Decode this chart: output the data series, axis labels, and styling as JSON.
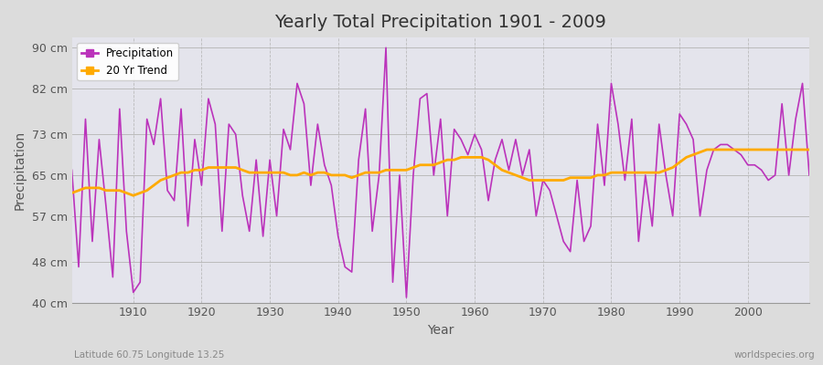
{
  "title": "Yearly Total Precipitation 1901 - 2009",
  "xlabel": "Year",
  "ylabel": "Precipitation",
  "subtitle": "Latitude 60.75 Longitude 13.25",
  "watermark": "worldspecies.org",
  "bg_color": "#dcdcdc",
  "plot_bg_color": "#e4e4ec",
  "precip_color": "#bb33bb",
  "trend_color": "#ffaa00",
  "ylim": [
    40,
    92
  ],
  "yticks": [
    40,
    48,
    57,
    65,
    73,
    82,
    90
  ],
  "ytick_labels": [
    "40 cm",
    "48 cm",
    "57 cm",
    "65 cm",
    "73 cm",
    "82 cm",
    "90 cm"
  ],
  "xticks": [
    1910,
    1920,
    1930,
    1940,
    1950,
    1960,
    1970,
    1980,
    1990,
    2000
  ],
  "years": [
    1901,
    1902,
    1903,
    1904,
    1905,
    1906,
    1907,
    1908,
    1909,
    1910,
    1911,
    1912,
    1913,
    1914,
    1915,
    1916,
    1917,
    1918,
    1919,
    1920,
    1921,
    1922,
    1923,
    1924,
    1925,
    1926,
    1927,
    1928,
    1929,
    1930,
    1931,
    1932,
    1933,
    1934,
    1935,
    1936,
    1937,
    1938,
    1939,
    1940,
    1941,
    1942,
    1943,
    1944,
    1945,
    1946,
    1947,
    1948,
    1949,
    1950,
    1951,
    1952,
    1953,
    1954,
    1955,
    1956,
    1957,
    1958,
    1959,
    1960,
    1961,
    1962,
    1963,
    1964,
    1965,
    1966,
    1967,
    1968,
    1969,
    1970,
    1971,
    1972,
    1973,
    1974,
    1975,
    1976,
    1977,
    1978,
    1979,
    1980,
    1981,
    1982,
    1983,
    1984,
    1985,
    1986,
    1987,
    1988,
    1989,
    1990,
    1991,
    1992,
    1993,
    1994,
    1995,
    1996,
    1997,
    1998,
    1999,
    2000,
    2001,
    2002,
    2003,
    2004,
    2005,
    2006,
    2007,
    2008,
    2009
  ],
  "precip": [
    66,
    47,
    76,
    52,
    72,
    59,
    45,
    78,
    54,
    42,
    44,
    76,
    71,
    80,
    62,
    60,
    78,
    55,
    72,
    63,
    80,
    75,
    54,
    75,
    73,
    61,
    54,
    68,
    53,
    68,
    57,
    74,
    70,
    83,
    79,
    63,
    75,
    67,
    63,
    53,
    47,
    46,
    68,
    78,
    54,
    65,
    90,
    44,
    65,
    41,
    65,
    80,
    81,
    65,
    76,
    57,
    74,
    72,
    69,
    73,
    70,
    60,
    68,
    72,
    66,
    72,
    65,
    70,
    57,
    64,
    62,
    57,
    52,
    50,
    64,
    52,
    55,
    75,
    63,
    83,
    75,
    64,
    76,
    52,
    65,
    55,
    75,
    65,
    57,
    77,
    75,
    72,
    57,
    66,
    70,
    71,
    71,
    70,
    69,
    67,
    67,
    66,
    64,
    65,
    79,
    65,
    76,
    83,
    65
  ],
  "trend": [
    61.5,
    62.0,
    62.5,
    62.5,
    62.5,
    62.0,
    62.0,
    62.0,
    61.5,
    61.0,
    61.5,
    62.0,
    63.0,
    64.0,
    64.5,
    65.0,
    65.5,
    65.5,
    66.0,
    66.0,
    66.5,
    66.5,
    66.5,
    66.5,
    66.5,
    66.0,
    65.5,
    65.5,
    65.5,
    65.5,
    65.5,
    65.5,
    65.0,
    65.0,
    65.5,
    65.0,
    65.5,
    65.5,
    65.0,
    65.0,
    65.0,
    64.5,
    65.0,
    65.5,
    65.5,
    65.5,
    66.0,
    66.0,
    66.0,
    66.0,
    66.5,
    67.0,
    67.0,
    67.0,
    67.5,
    68.0,
    68.0,
    68.5,
    68.5,
    68.5,
    68.5,
    68.0,
    67.0,
    66.0,
    65.5,
    65.0,
    64.5,
    64.0,
    64.0,
    64.0,
    64.0,
    64.0,
    64.0,
    64.5,
    64.5,
    64.5,
    64.5,
    65.0,
    65.0,
    65.5,
    65.5,
    65.5,
    65.5,
    65.5,
    65.5,
    65.5,
    65.5,
    66.0,
    66.5,
    67.5,
    68.5,
    69.0,
    69.5,
    70.0,
    70.0,
    70.0,
    70.0,
    70.0,
    70.0,
    70.0,
    70.0,
    70.0,
    70.0,
    70.0,
    70.0,
    70.0,
    70.0,
    70.0,
    70.0
  ]
}
